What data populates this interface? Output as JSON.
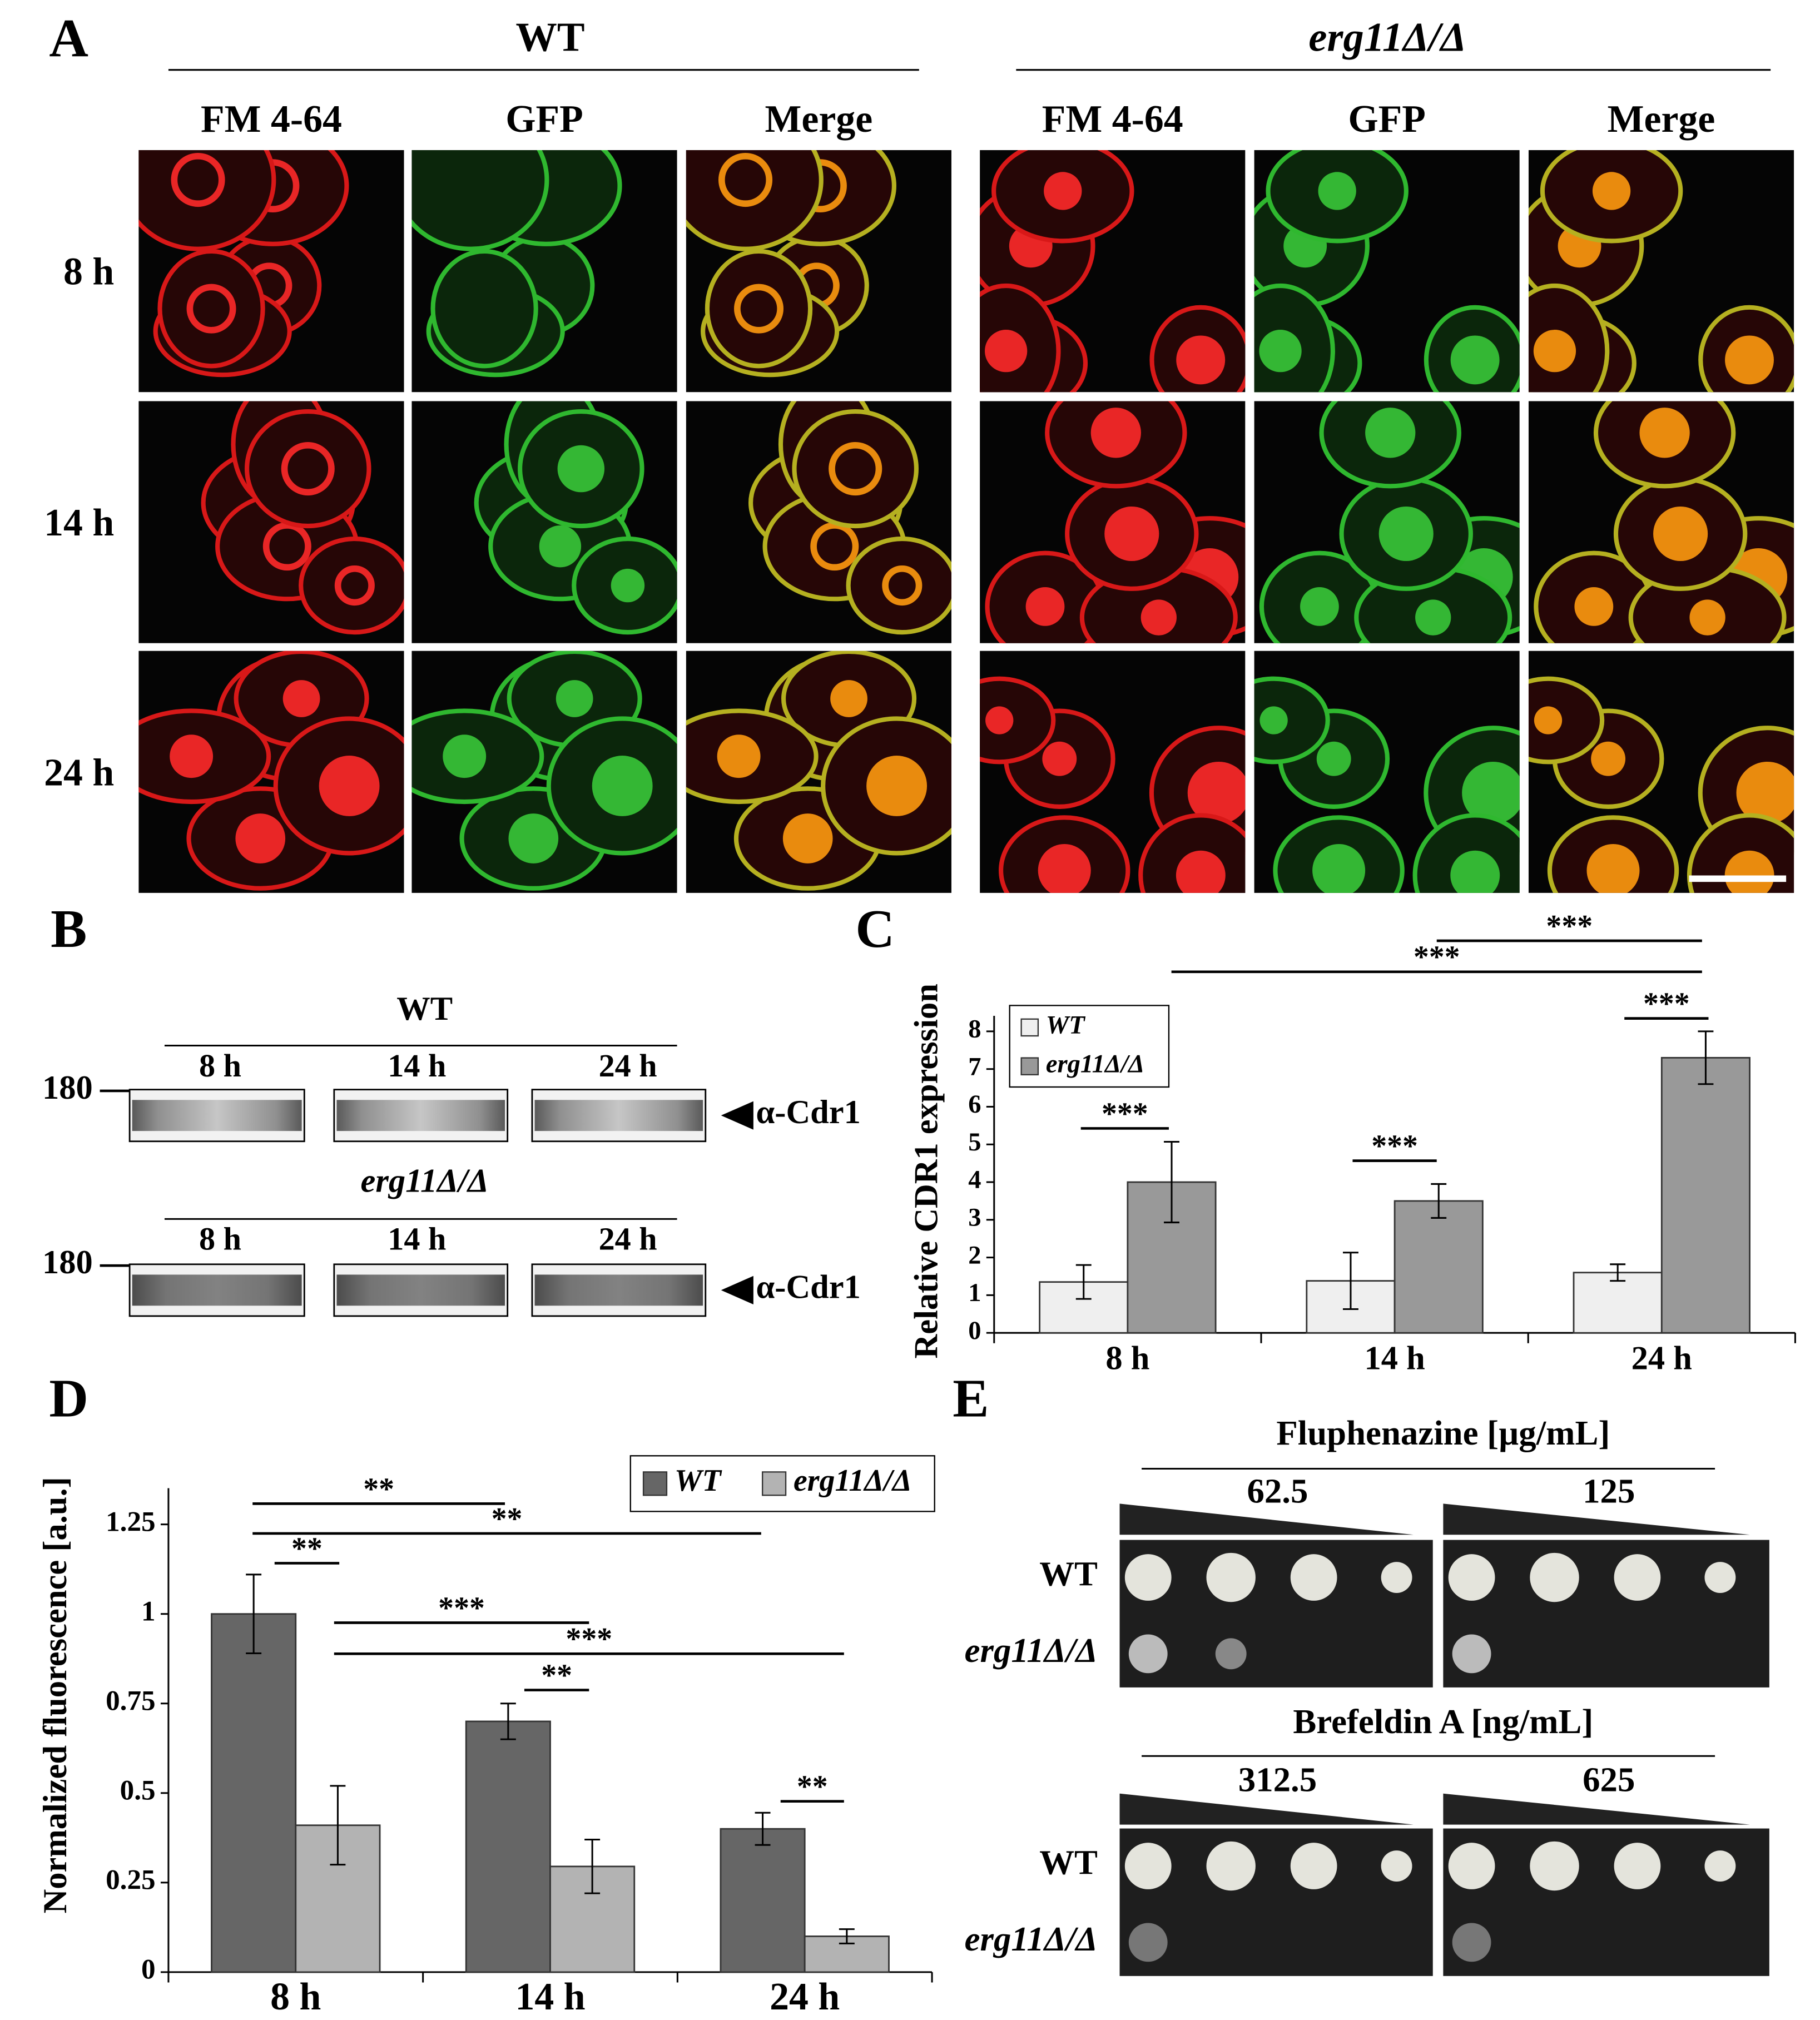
{
  "panel_a": {
    "label": "A",
    "strains": [
      {
        "name": "WT",
        "channels": [
          "FM 4-64",
          "GFP",
          "Merge"
        ]
      },
      {
        "name": "erg11Δ/Δ",
        "channels": [
          "FM 4-64",
          "GFP",
          "Merge"
        ]
      }
    ],
    "times": [
      "8 h",
      "14 h",
      "24 h"
    ]
  },
  "panel_b": {
    "label": "B",
    "blots": [
      {
        "strain": "WT",
        "times": [
          "8 h",
          "14 h",
          "24 h"
        ],
        "marker": "180",
        "antibody": "α-Cdr1"
      },
      {
        "strain": "erg11Δ/Δ",
        "times": [
          "8 h",
          "14 h",
          "24 h"
        ],
        "marker": "180",
        "antibody": "α-Cdr1"
      }
    ]
  },
  "panel_e": {
    "label": "E",
    "treatments": [
      {
        "name": "Fluphenazine [µg/mL]",
        "concentrations": [
          "62.5",
          "125"
        ],
        "strains": [
          "WT",
          "erg11Δ/Δ"
        ]
      },
      {
        "name": "Brefeldin A [ng/mL]",
        "concentrations": [
          "312.5",
          "625"
        ],
        "strains": [
          "WT",
          "erg11Δ/Δ"
        ]
      }
    ]
  },
  "chart_data": [
    {
      "type": "bar",
      "label": "C",
      "y_label": "Relative CDR1 expression",
      "categories": [
        "8 h",
        "14 h",
        "24 h"
      ],
      "series": [
        {
          "name": "WT",
          "color": "#efefef",
          "values": [
            1.35,
            1.38,
            1.6
          ],
          "errors": [
            0.45,
            0.75,
            0.22
          ]
        },
        {
          "name": "erg11Δ/Δ",
          "color": "#999999",
          "values": [
            4.0,
            3.5,
            7.3
          ],
          "errors": [
            1.07,
            0.45,
            0.7
          ]
        }
      ],
      "ylim": [
        0,
        8
      ],
      "yticks": [
        0,
        1,
        2,
        3,
        4,
        5,
        6,
        7,
        8
      ],
      "legend": "upper left",
      "annotations": [
        "***",
        "***",
        "***",
        "***",
        "***"
      ]
    },
    {
      "type": "bar",
      "label": "D",
      "y_label": "Normalized fluorescence [a.u.]",
      "categories": [
        "8 h",
        "14 h",
        "24 h"
      ],
      "series": [
        {
          "name": "WT",
          "color": "#666666",
          "values": [
            1.0,
            0.7,
            0.4
          ],
          "errors": [
            0.11,
            0.05,
            0.045
          ]
        },
        {
          "name": "erg11Δ/Δ",
          "color": "#b3b3b3",
          "values": [
            0.41,
            0.295,
            0.1
          ],
          "errors": [
            0.11,
            0.075,
            0.02
          ]
        }
      ],
      "ylim": [
        0,
        1.25
      ],
      "yticks": [
        0,
        0.25,
        0.5,
        0.75,
        1,
        1.25
      ],
      "legend": "upper right",
      "annotations": [
        "**",
        "**",
        "**",
        "***",
        "***",
        "**",
        "**"
      ]
    }
  ]
}
